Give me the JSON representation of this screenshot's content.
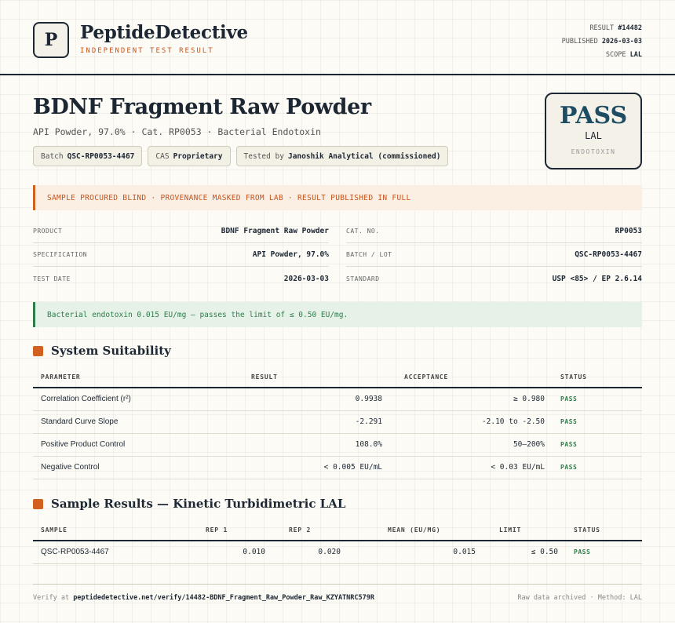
{
  "brand": {
    "logo_letter": "P",
    "name": "PeptideDetective",
    "tagline": "INDEPENDENT TEST RESULT"
  },
  "meta": {
    "result_label": "RESULT",
    "result_value": "#14482",
    "published_label": "PUBLISHED",
    "published_value": "2026-03-03",
    "scope_label": "SCOPE",
    "scope_value": "LAL"
  },
  "product": {
    "title": "BDNF Fragment Raw Powder",
    "subtitle": "API Powder, 97.0% · Cat. RP0053 · Bacterial Endotoxin",
    "chips": [
      {
        "label": "Batch",
        "value": "QSC-RP0053-4467"
      },
      {
        "label": "CAS",
        "value": "Proprietary"
      },
      {
        "label": "Tested by",
        "value": "Janoshik Analytical (commissioned)"
      }
    ]
  },
  "verdict": {
    "word": "PASS",
    "method": "LAL",
    "scope": "ENDOTOXIN"
  },
  "notice": "SAMPLE PROCURED BLIND · PROVENANCE MASKED FROM LAB · RESULT PUBLISHED IN FULL",
  "info": {
    "product_label": "PRODUCT",
    "product_value": "BDNF Fragment Raw Powder",
    "cat_label": "CAT. NO.",
    "cat_value": "RP0053",
    "spec_label": "SPECIFICATION",
    "spec_value": "API Powder, 97.0%",
    "batch_label": "BATCH / LOT",
    "batch_value": "QSC-RP0053-4467",
    "date_label": "TEST DATE",
    "date_value": "2026-03-03",
    "standard_label": "STANDARD",
    "standard_value": "USP <85> / EP 2.6.14"
  },
  "summary": "Bacterial endotoxin 0.015 EU/mg — passes the limit of ≤ 0.50 EU/mg.",
  "suitability": {
    "title": "System Suitability",
    "headers": {
      "parameter": "PARAMETER",
      "result": "RESULT",
      "acceptance": "ACCEPTANCE",
      "status": "STATUS"
    },
    "rows": [
      {
        "parameter": "Correlation Coefficient (r²)",
        "result": "0.9938",
        "acceptance": "≥ 0.980",
        "status": "PASS"
      },
      {
        "parameter": "Standard Curve Slope",
        "result": "-2.291",
        "acceptance": "-2.10 to -2.50",
        "status": "PASS"
      },
      {
        "parameter": "Positive Product Control",
        "result": "108.0%",
        "acceptance": "50–200%",
        "status": "PASS"
      },
      {
        "parameter": "Negative Control",
        "result": "< 0.005 EU/mL",
        "acceptance": "< 0.03 EU/mL",
        "status": "PASS"
      }
    ]
  },
  "samples": {
    "title": "Sample Results — Kinetic Turbidimetric LAL",
    "headers": {
      "sample": "SAMPLE",
      "rep1": "REP 1",
      "rep2": "REP 2",
      "mean": "MEAN (EU/MG)",
      "limit": "LIMIT",
      "status": "STATUS"
    },
    "rows": [
      {
        "sample": "QSC-RP0053-4467",
        "rep1": "0.010",
        "rep2": "0.020",
        "mean": "0.015",
        "limit": "≤ 0.50",
        "status": "PASS"
      }
    ]
  },
  "footer": {
    "verify_prefix": "Verify at",
    "verify_url": "peptidedetective.net/verify/14482-BDNF_Fragment_Raw_Powder_Raw_KZYATNRC579R",
    "right_text": "Raw data archived · Method: LAL"
  },
  "colors": {
    "accent": "#d2601f",
    "pass_green": "#2e7d4a",
    "navy": "#1e4d63",
    "ink": "#1d2733"
  }
}
